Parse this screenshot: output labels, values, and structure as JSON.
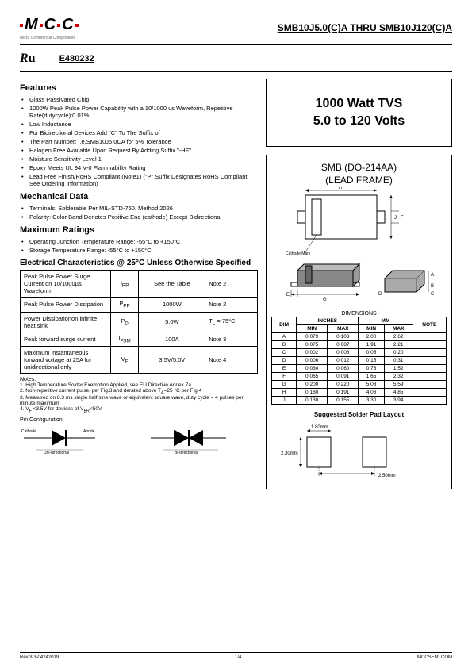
{
  "logo_sub": "Micro Commercial Components",
  "header_title": "SMB10J5.0(C)A THRU SMB10J120(C)A",
  "cert_num": "E480232",
  "hero": {
    "l1": "1000 Watt TVS",
    "l2": "5.0 to 120 Volts"
  },
  "features_title": "Features",
  "features": [
    "Glass Passivated Chip",
    "1000W Peak Pulse Power Capability with a 10/1000 us Waveform, Repetitive Rate(dutycycle):0.01%",
    "Low Inductance",
    "For Bidirectional Devices Add \"C\" To The Suffix of",
    "The Part Number: i.e.SMB10J5.0CA for 5% Tolerance",
    "Halogen Free Available Upon Request By Adding Suffix \"-HF\"",
    "Moisture Sensitivity Level 1",
    "Epoxy Meets UL 94 V-0 Flammability Rating",
    "Lead Free Finish/RoHS Compliant (Note1) (\"P\" Suffix Designates RoHS Compliant. See Ordering Information)"
  ],
  "mech_title": "Mechanical  Data",
  "mech": [
    "Terminals: Solderable Per MIL-STD-750, Method 2026",
    "Polarity: Color Band Denotes Positive End (cathode) Except Bidirectiona"
  ],
  "max_title": "Maximum Ratings",
  "max": [
    "Operating Junction Temperature Range: -55°C to +150°C",
    "Storage Temperature Range: -55°C to +150°C"
  ],
  "elec_title": "Electrical Characteristics @ 25°C Unless Otherwise Specified",
  "char_rows": [
    {
      "param": "Peak Pulse Power Surge Current on 10/1000µs  Waveform",
      "sym": "I<sub>PP</sub>",
      "val": "See the Table",
      "note": "Note 2"
    },
    {
      "param": "Peak Pulse Power Dissipation",
      "sym": "P<sub>PP</sub>",
      "val": "1000W",
      "note": "Note 2"
    },
    {
      "param": "Power Dissipationon infinite heat sink",
      "sym": "P<sub>D</sub>",
      "val": "5.0W",
      "note": "T<sub>L</sub> = 75°C"
    },
    {
      "param": "Peak forward surge current",
      "sym": "I<sub>FSM</sub>",
      "val": "100A",
      "note": "Note 3"
    },
    {
      "param": "Maximum instantaneous forward voltage at 25A for unidirectional only",
      "sym": "V<sub>F</sub>",
      "val": "3.5V/5.0V",
      "note": "Note 4"
    }
  ],
  "notes_title": "Notes:",
  "notes": [
    "1. High Temperature Solder Exemption Applied, see EU Directive Annex 7a.",
    "2. Non-repetitive current pulse, per Fig.3 and derated above T<sub>A</sub>=25 °C  per Fig.4",
    "3. Measured on 8.3 ms single half sine-wave or equivalent square wave, duty cycle = 4 pulses per minute maximum",
    "4. V<sub>F</sub> <3.5V for devices of V<sub>BR</sub><50V"
  ],
  "pin_config_label": "Pin Configuration:",
  "pkg_title1": "SMB (DO-214AA)",
  "pkg_title2": "(LEAD FRAME)",
  "dim_title": "DIMENSIONS",
  "dim_headers": {
    "dim": "DIM",
    "inches": "INCHES",
    "mm": "MM",
    "note": "NOTE",
    "min": "MIN",
    "max": "MAX"
  },
  "dims": [
    {
      "d": "A",
      "imin": "0.079",
      "imax": "0.103",
      "mmin": "2.00",
      "mmax": "2.62",
      "n": ""
    },
    {
      "d": "B",
      "imin": "0.075",
      "imax": "0.087",
      "mmin": "1.91",
      "mmax": "2.21",
      "n": ""
    },
    {
      "d": "C",
      "imin": "0.002",
      "imax": "0.008",
      "mmin": "0.05",
      "mmax": "0.20",
      "n": ""
    },
    {
      "d": "D",
      "imin": "0.006",
      "imax": "0.012",
      "mmin": "0.15",
      "mmax": "0.31",
      "n": ""
    },
    {
      "d": "E",
      "imin": "0.030",
      "imax": "0.060",
      "mmin": "0.76",
      "mmax": "1.52",
      "n": ""
    },
    {
      "d": "F",
      "imin": "0.065",
      "imax": "0.091",
      "mmin": "1.65",
      "mmax": "2.32",
      "n": ""
    },
    {
      "d": "G",
      "imin": "0.200",
      "imax": "0.220",
      "mmin": "5.08",
      "mmax": "5.59",
      "n": ""
    },
    {
      "d": "H",
      "imin": "0.160",
      "imax": "0.191",
      "mmin": "4.06",
      "mmax": "4.85",
      "n": ""
    },
    {
      "d": "J",
      "imin": "0.130",
      "imax": "0.155",
      "mmin": "3.30",
      "mmax": "3.94",
      "n": ""
    }
  ],
  "solder_title": "Suggested Solder Pad Layout",
  "solder_dims": {
    "w": "1.80mm",
    "h": "2.30mm",
    "pitch": "2.50mm"
  },
  "diode_labels": {
    "cathode": "Cathode",
    "anode": "Anode",
    "uni": "Uni-directional",
    "bi": "Bi-directional",
    "cathode_mark": "Cathode Mark"
  },
  "footer": {
    "left": "Rev.3-3-04242019",
    "center": "1/4",
    "right": "MCCSEMI.COM"
  }
}
